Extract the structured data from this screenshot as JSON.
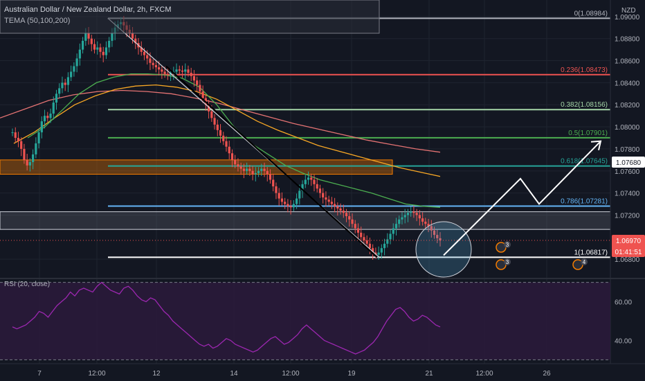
{
  "header": {
    "title": "Australian Dollar / New Zealand Dollar, 2h, FXCM",
    "indicator": "TEMA (50,100,200)"
  },
  "currency": "NZD",
  "colors": {
    "bg": "#131722",
    "up": "#26a69a",
    "down": "#ef5350",
    "grid": "#1f2430",
    "text": "#b2b5be",
    "rsi": "#9c27b0",
    "rsi_band": "#2a1a3a",
    "tema50": "#4caf50",
    "tema100": "#f9a825",
    "tema200": "#e57373"
  },
  "chart_data": [
    {
      "type": "candlestick",
      "ylim": [
        1.0665,
        1.0915
      ],
      "y_ticks": [
        "1.09000",
        "1.08800",
        "1.08600",
        "1.08400",
        "1.08200",
        "1.08000",
        "1.07800",
        "1.07600",
        "1.07400",
        "1.07200",
        "1.06800"
      ],
      "x_ticks": [
        "7",
        "12:00",
        "12",
        "14",
        "12:00",
        "19",
        "21",
        "12:00",
        "26"
      ],
      "last_price": "1.06970",
      "countdown": "01:41:51",
      "level_badge": "1.07680",
      "fib_levels": [
        {
          "label": "0(1.08984)",
          "value": 1.08984,
          "color": "#b2b5be"
        },
        {
          "label": "0.236(1.08473)",
          "value": 1.08473,
          "color": "#ef5350"
        },
        {
          "label": "0.382(1.08156)",
          "value": 1.08156,
          "color": "#a5d6a7"
        },
        {
          "label": "0.5(1.07901)",
          "value": 1.07901,
          "color": "#4caf50"
        },
        {
          "label": "0.618(1.07645)",
          "value": 1.07645,
          "color": "#26a69a"
        },
        {
          "label": "0.786(1.07281)",
          "value": 1.07281,
          "color": "#64b5f6"
        },
        {
          "label": "1(1.06817)",
          "value": 1.06817,
          "color": "#ffffff"
        }
      ],
      "zones": [
        {
          "name": "resistance-zone",
          "from": 1.0757,
          "to": 1.077,
          "color": "#f57c00"
        },
        {
          "name": "support-zone",
          "from": 1.0707,
          "to": 1.0723,
          "color": "#787b86"
        }
      ],
      "close_series": [
        1.0795,
        1.079,
        1.0787,
        1.078,
        1.077,
        1.0765,
        1.0768,
        1.0775,
        1.0785,
        1.0795,
        1.0805,
        1.081,
        1.0808,
        1.0812,
        1.0822,
        1.083,
        1.0835,
        1.084,
        1.0838,
        1.0845,
        1.085,
        1.0855,
        1.0862,
        1.087,
        1.0878,
        1.0885,
        1.088,
        1.0875,
        1.087,
        1.0872,
        1.0868,
        1.0865,
        1.0872,
        1.0878,
        1.0885,
        1.089,
        1.0893,
        1.0895,
        1.0892,
        1.0888,
        1.0885,
        1.088,
        1.0876,
        1.0872,
        1.0868,
        1.0865,
        1.0862,
        1.0858,
        1.0856,
        1.0854,
        1.0852,
        1.085,
        1.0848,
        1.0847,
        1.0849,
        1.085,
        1.0852,
        1.0851,
        1.085,
        1.0852,
        1.0849,
        1.0846,
        1.0842,
        1.0838,
        1.0832,
        1.0826,
        1.082,
        1.0814,
        1.0808,
        1.0802,
        1.0797,
        1.0792,
        1.0787,
        1.0782,
        1.0776,
        1.077,
        1.0766,
        1.0764,
        1.0762,
        1.076,
        1.0762,
        1.076,
        1.0757,
        1.0758,
        1.076,
        1.0762,
        1.076,
        1.0757,
        1.0752,
        1.0746,
        1.074,
        1.0735,
        1.0732,
        1.073,
        1.0728,
        1.0727,
        1.073,
        1.0735,
        1.0742,
        1.0748,
        1.0752,
        1.0754,
        1.0752,
        1.0748,
        1.0744,
        1.074,
        1.0736,
        1.0734,
        1.0732,
        1.073,
        1.0728,
        1.0726,
        1.0724,
        1.0722,
        1.0719,
        1.0716,
        1.0712,
        1.0708,
        1.0704,
        1.07,
        1.0697,
        1.0694,
        1.069,
        1.0686,
        1.0684,
        1.0686,
        1.069,
        1.0694,
        1.0698,
        1.0703,
        1.0708,
        1.0712,
        1.0716,
        1.0718,
        1.072,
        1.0722,
        1.0723,
        1.0722,
        1.072,
        1.0717,
        1.0714,
        1.0712,
        1.071,
        1.0706,
        1.0702,
        1.0699,
        1.0697
      ],
      "tema50": [
        1.079,
        1.08,
        1.0815,
        1.083,
        1.084,
        1.0845,
        1.0848,
        1.0848,
        1.0847,
        1.0844,
        1.0836,
        1.082,
        1.08,
        1.0785,
        1.0775,
        1.0765,
        1.0758,
        1.0752,
        1.0748,
        1.0744,
        1.074,
        1.0735,
        1.073,
        1.0728,
        1.0727
      ],
      "tema100": [
        1.0785,
        1.0795,
        1.0808,
        1.082,
        1.0828,
        1.0834,
        1.0837,
        1.0838,
        1.0836,
        1.0832,
        1.0825,
        1.0815,
        1.0805,
        1.0797,
        1.079,
        1.0783,
        1.0778,
        1.0773,
        1.0768,
        1.0763,
        1.0759,
        1.0755
      ],
      "tema200": [
        1.0808,
        1.0816,
        1.0824,
        1.0829,
        1.0832,
        1.0833,
        1.0832,
        1.083,
        1.0826,
        1.0821,
        1.0815,
        1.0809,
        1.0803,
        1.0798,
        1.0793,
        1.0788,
        1.0784,
        1.078,
        1.0777
      ],
      "projection_path": [
        [
          0,
          1.06835
        ],
        [
          1,
          1.0753
        ],
        [
          2,
          1.073
        ],
        [
          3,
          1.0787
        ]
      ],
      "events": [
        "3",
        "3",
        "4"
      ]
    },
    {
      "type": "line",
      "title": "RSI (20, close)",
      "ylim": [
        28,
        72
      ],
      "y_ticks": [
        "60.00",
        "40.00"
      ],
      "values": [
        47,
        46,
        47,
        48,
        50,
        52,
        55,
        54,
        52,
        55,
        58,
        60,
        62,
        65,
        63,
        66,
        67,
        66,
        65,
        68,
        70,
        68,
        66,
        65,
        64,
        67,
        68,
        66,
        63,
        61,
        60,
        62,
        61,
        58,
        55,
        53,
        50,
        48,
        46,
        44,
        42,
        40,
        38,
        37,
        38,
        36,
        37,
        39,
        41,
        40,
        38,
        37,
        36,
        35,
        34,
        35,
        37,
        39,
        41,
        42,
        40,
        38,
        39,
        41,
        43,
        46,
        48,
        46,
        44,
        42,
        40,
        39,
        38,
        37,
        36,
        35,
        34,
        33,
        34,
        35,
        37,
        39,
        42,
        46,
        50,
        53,
        56,
        57,
        55,
        52,
        50,
        51,
        53,
        52,
        50,
        48,
        47
      ]
    }
  ]
}
